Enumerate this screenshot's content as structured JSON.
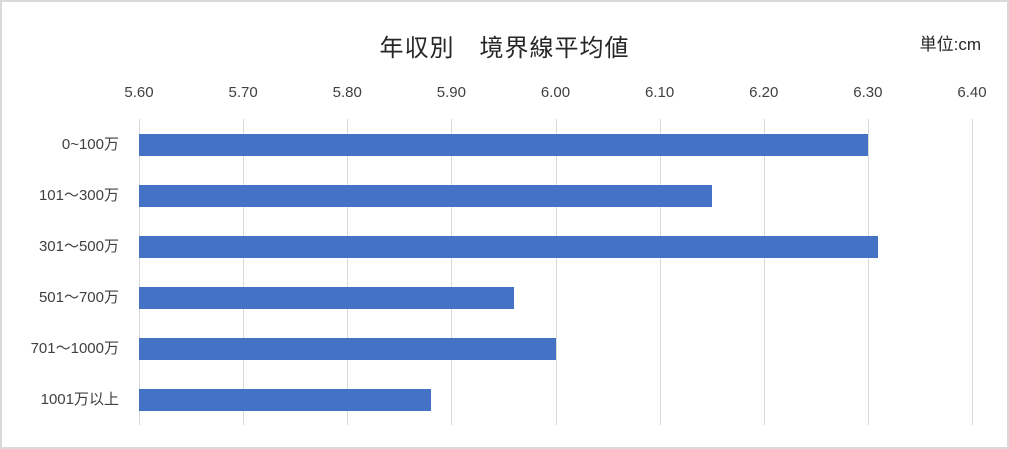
{
  "chart_data": {
    "type": "bar",
    "orientation": "horizontal",
    "title": "年収別　境界線平均値",
    "unit_label": "単位:cm",
    "categories": [
      "0~100万",
      "101〜300万",
      "301〜500万",
      "501〜700万",
      "701〜1000万",
      "1001万以上"
    ],
    "values": [
      6.3,
      6.15,
      6.31,
      5.96,
      6.0,
      5.88
    ],
    "xlim": [
      5.6,
      6.4
    ],
    "x_ticks": [
      "5.60",
      "5.70",
      "5.80",
      "5.90",
      "6.00",
      "6.10",
      "6.20",
      "6.30",
      "6.40"
    ],
    "tick_step": 0.1,
    "axis_position": "top",
    "grid": true,
    "legend": false,
    "bar_color": "#4472C4",
    "gridline_color": "#D9D9D9",
    "tick_text_color": "#404040",
    "title_color": "#262626",
    "background": "#FFFFFF"
  }
}
